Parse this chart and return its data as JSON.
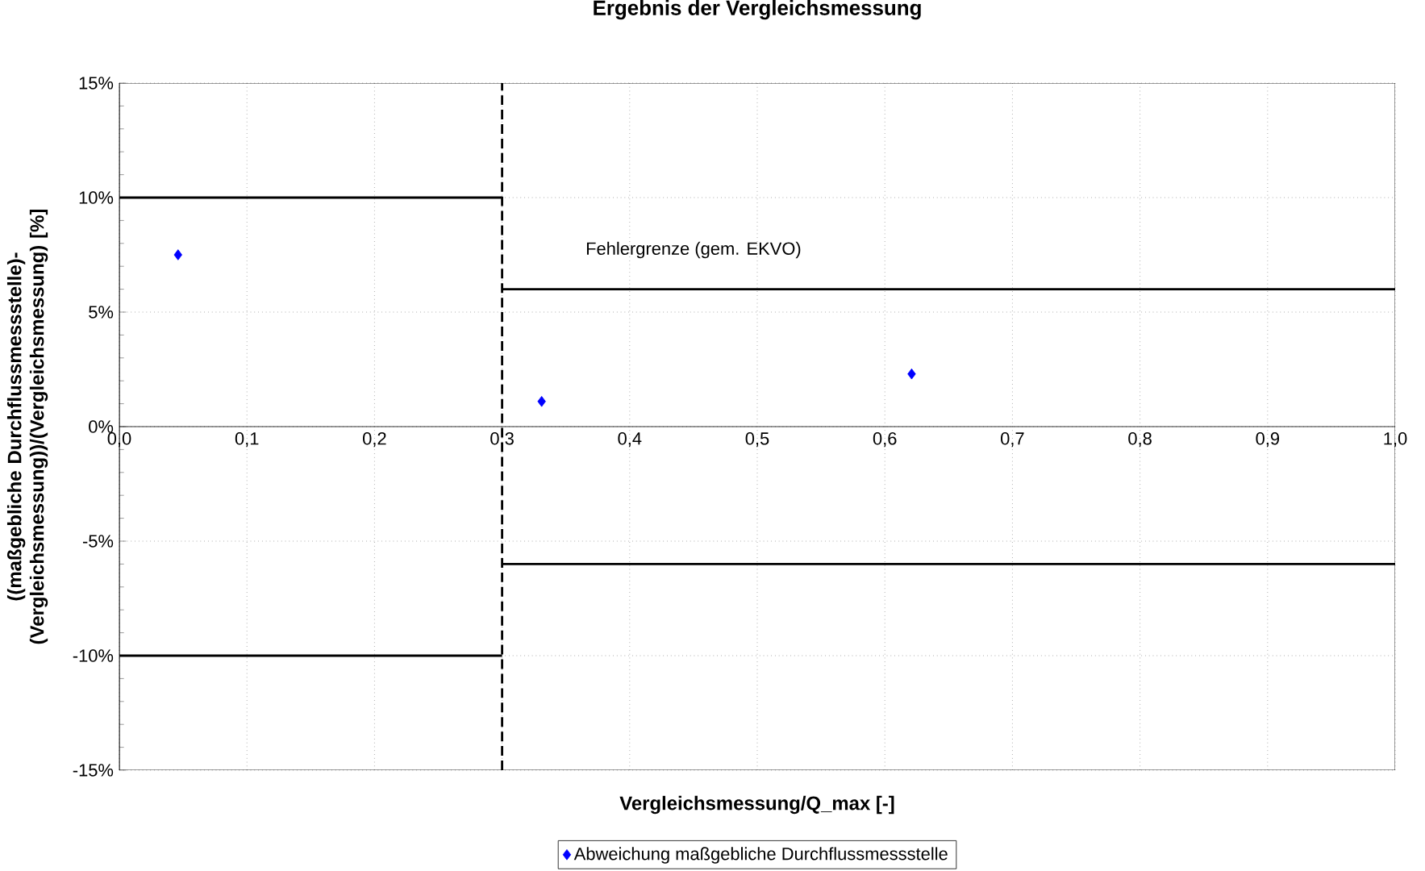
{
  "chart_data": {
    "type": "scatter",
    "title": "Ergebnis der Vergleichsmessung",
    "xlabel": "Vergleichsmessung/Q_max [-]",
    "ylabel": "((maßgebliche Durchflussmessstelle)-(Vergleichsmessung))/(Vergleichsmessung) [%]",
    "annotations": [
      "Fehlergrenze (gem. EKVO)"
    ],
    "series": [
      {
        "name": "Abweichung maßgebliche Durchflussmessstelle",
        "color": "#0000ff",
        "marker": "diamond",
        "x": [
          0.046,
          0.331,
          0.621
        ],
        "values": [
          7.5,
          1.1,
          2.3
        ]
      },
      {
        "type": "line",
        "color": "#000000",
        "x": [
          0.0,
          0.3
        ],
        "values": [
          10,
          10
        ]
      },
      {
        "type": "line",
        "color": "#000000",
        "x": [
          0.3,
          1.0
        ],
        "values": [
          6,
          6
        ]
      },
      {
        "type": "line",
        "color": "#000000",
        "x": [
          0.0,
          0.3
        ],
        "values": [
          -10,
          -10
        ]
      },
      {
        "type": "line",
        "color": "#000000",
        "x": [
          0.3,
          1.0
        ],
        "values": [
          -6,
          -6
        ]
      }
    ],
    "ref_lines": [
      {
        "axis": "x",
        "value": 0.3,
        "color": "#000000",
        "line_style": "dashed"
      }
    ],
    "xlim": [
      0,
      1
    ],
    "ylim": [
      -15,
      15
    ],
    "xticks": [
      {
        "value": 0,
        "label": "0,0"
      },
      {
        "value": 0.1,
        "label": "0,1"
      },
      {
        "value": 0.2,
        "label": "0,2"
      },
      {
        "value": 0.3,
        "label": "0,3"
      },
      {
        "value": 0.4,
        "label": "0,4"
      },
      {
        "value": 0.5,
        "label": "0,5"
      },
      {
        "value": 0.6,
        "label": "0,6"
      },
      {
        "value": 0.7,
        "label": "0,7"
      },
      {
        "value": 0.8,
        "label": "0,8"
      },
      {
        "value": 0.9,
        "label": "0,9"
      },
      {
        "value": 1,
        "label": "1,0"
      }
    ],
    "yticks": [
      {
        "value": -15,
        "label": "-15%"
      },
      {
        "value": -10,
        "label": "-10%"
      },
      {
        "value": -5,
        "label": "-5%"
      },
      {
        "value": 0,
        "label": "0%"
      },
      {
        "value": 5,
        "label": "5%"
      },
      {
        "value": 10,
        "label": "10%"
      },
      {
        "value": 15,
        "label": "15%"
      }
    ],
    "grid": true,
    "legend": "bottom"
  }
}
